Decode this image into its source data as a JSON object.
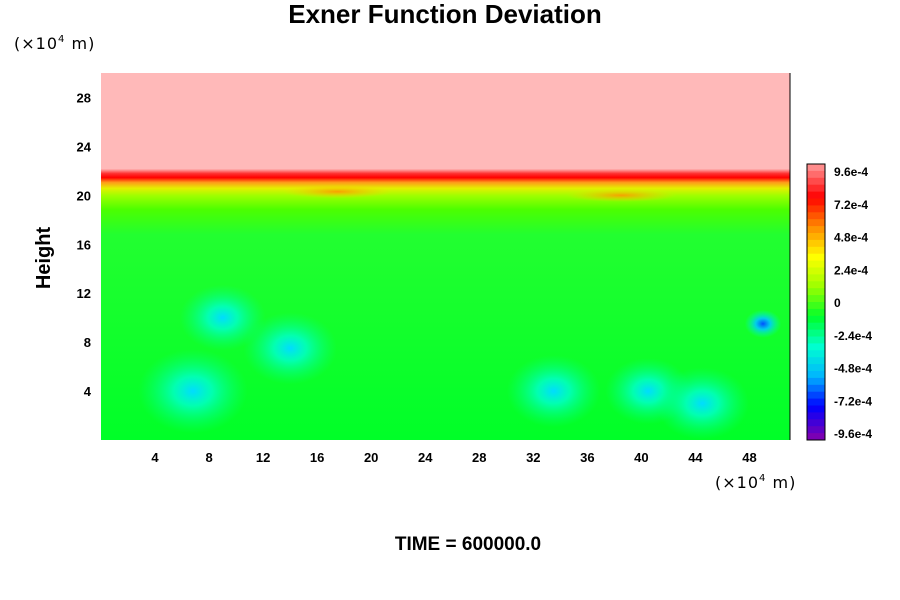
{
  "chart_data": {
    "type": "heatmap",
    "title": "Exner Function Deviation",
    "ylabel": "Height",
    "xlabel": "",
    "x_unit": {
      "prefix": "(×10",
      "exp": "4",
      "suffix": " m)"
    },
    "y_unit": {
      "prefix": "(×10",
      "exp": "4",
      "suffix": " m)"
    },
    "footer": "TIME = 600000.0",
    "xlim": [
      0,
      51
    ],
    "ylim": [
      0,
      30
    ],
    "xticks": [
      4,
      8,
      12,
      16,
      20,
      24,
      28,
      32,
      36,
      40,
      44,
      48
    ],
    "xtick_labels": [
      "4",
      "8",
      "12",
      "16",
      "20",
      "24",
      "28",
      "32",
      "36",
      "40",
      "44",
      "48"
    ],
    "yticks": [
      4,
      8,
      12,
      16,
      20,
      24,
      28
    ],
    "ytick_labels": [
      "4",
      "8",
      "12",
      "16",
      "20",
      "24",
      "28"
    ],
    "grid": false,
    "colorbar": {
      "min": -0.00096,
      "max": 0.00096,
      "labels": [
        "9.6e-4",
        "7.2e-4",
        "4.8e-4",
        "2.4e-4",
        "0",
        "-2.4e-4",
        "-4.8e-4",
        "-7.2e-4",
        "-9.6e-4"
      ],
      "label_values": [
        0.00096,
        0.00072,
        0.00048,
        0.00024,
        0,
        -0.00024,
        -0.00048,
        -0.00072,
        -0.00096
      ],
      "colors": [
        "#ff8c8c",
        "#ff0000",
        "#ff8c00",
        "#ffff00",
        "#9bff00",
        "#00ff2a",
        "#00ffd0",
        "#00b4ff",
        "#0000ff",
        "#7a00b4"
      ]
    },
    "field_regions": [
      {
        "region": "upper layer",
        "y_range": [
          21.5,
          30
        ],
        "value": 0.001
      },
      {
        "region": "tropopause band",
        "y_range": [
          20.5,
          21.5
        ],
        "value": 0.0008
      },
      {
        "region": "lower domain",
        "y_range": [
          0,
          19
        ],
        "value": -8e-05
      }
    ],
    "field_features": [
      {
        "x": 6.8,
        "y": 4.0,
        "value": -0.0004
      },
      {
        "x": 14,
        "y": 7.5,
        "value": -0.0003
      },
      {
        "x": 9,
        "y": 10,
        "value": -0.00025
      },
      {
        "x": 33.5,
        "y": 4.0,
        "value": -0.0003
      },
      {
        "x": 40.5,
        "y": 4.0,
        "value": -0.00025
      },
      {
        "x": 44.5,
        "y": 3.0,
        "value": -0.0003
      },
      {
        "x": 49,
        "y": 9.5,
        "value": -0.0006
      },
      {
        "x": 17.5,
        "y": 20.3,
        "value": 0.0005
      },
      {
        "x": 38.5,
        "y": 20.0,
        "value": 0.0004
      }
    ]
  }
}
